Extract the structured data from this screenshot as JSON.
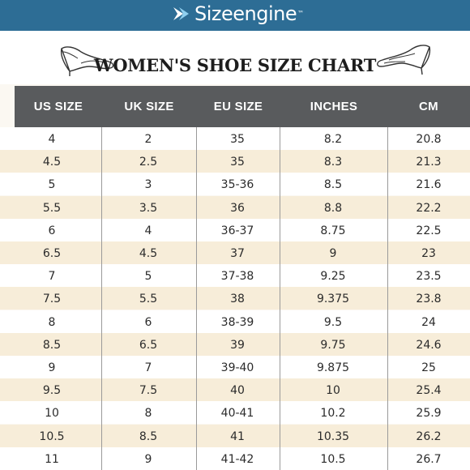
{
  "brand": {
    "name": "Sizeengine",
    "tm": "™"
  },
  "title": "WOMEN'S SHOE SIZE CHART",
  "columns": [
    "US SIZE",
    "UK SIZE",
    "EU SIZE",
    "INCHES",
    "CM"
  ],
  "rows": [
    [
      "4",
      "2",
      "35",
      "8.2",
      "20.8"
    ],
    [
      "4.5",
      "2.5",
      "35",
      "8.3",
      "21.3"
    ],
    [
      "5",
      "3",
      "35-36",
      "8.5",
      "21.6"
    ],
    [
      "5.5",
      "3.5",
      "36",
      "8.8",
      "22.2"
    ],
    [
      "6",
      "4",
      "36-37",
      "8.75",
      "22.5"
    ],
    [
      "6.5",
      "4.5",
      "37",
      "9",
      "23"
    ],
    [
      "7",
      "5",
      "37-38",
      "9.25",
      "23.5"
    ],
    [
      "7.5",
      "5.5",
      "38",
      "9.375",
      "23.8"
    ],
    [
      "8",
      "6",
      "38-39",
      "9.5",
      "24"
    ],
    [
      "8.5",
      "6.5",
      "39",
      "9.75",
      "24.6"
    ],
    [
      "9",
      "7",
      "39-40",
      "9.875",
      "25"
    ],
    [
      "9.5",
      "7.5",
      "40",
      "10",
      "25.4"
    ],
    [
      "10",
      "8",
      "40-41",
      "10.2",
      "25.9"
    ],
    [
      "10.5",
      "8.5",
      "41",
      "10.35",
      "26.2"
    ],
    [
      "11",
      "9",
      "41-42",
      "10.5",
      "26.7"
    ]
  ],
  "colors": {
    "brand_bar": "#2d6d95",
    "header_bg": "#595b5d",
    "row_even": "#ffffff",
    "row_odd": "#f7edd9"
  },
  "icons": {
    "logo": "sizeengine-arrow-icon",
    "shoe_left": "high-heel-shoe-icon",
    "shoe_right": "high-heel-shoe-icon"
  }
}
